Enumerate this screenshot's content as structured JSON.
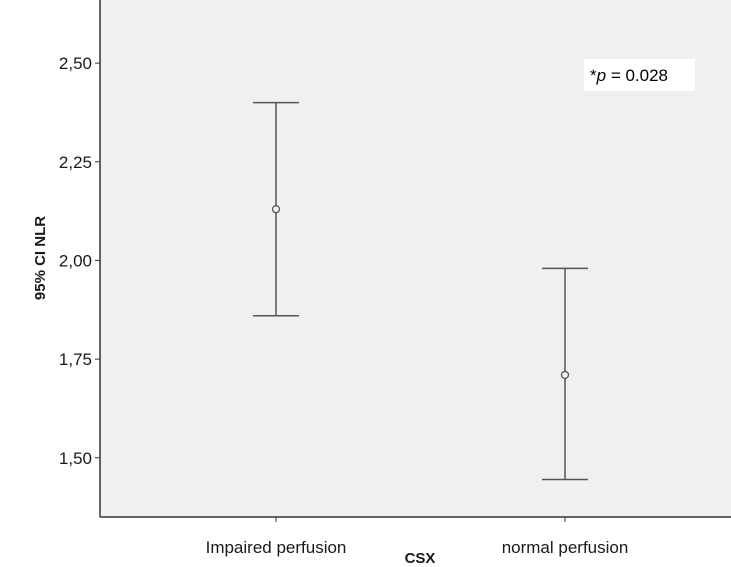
{
  "chart_data": {
    "type": "errorbar",
    "xlabel": "CSX",
    "ylabel": "95% CI NLR",
    "ylim": [
      1.35,
      2.66
    ],
    "yticks": [
      1.5,
      1.75,
      2.0,
      2.25,
      2.5
    ],
    "ytick_labels": [
      "1,50",
      "1,75",
      "2,00",
      "2,25",
      "2,50"
    ],
    "categories": [
      "Impaired perfusion",
      "normal perfusion"
    ],
    "series": [
      {
        "means": [
          2.13,
          1.71
        ],
        "lower": [
          1.86,
          1.445
        ],
        "upper": [
          2.4,
          1.98
        ]
      }
    ],
    "annotation": {
      "prefix": "*",
      "italic": "p",
      "suffix": " = 0.028"
    },
    "grid": false,
    "colors": {
      "plot_background": "#f0f0f0",
      "markers": "#555555",
      "axis": "#333333"
    }
  }
}
